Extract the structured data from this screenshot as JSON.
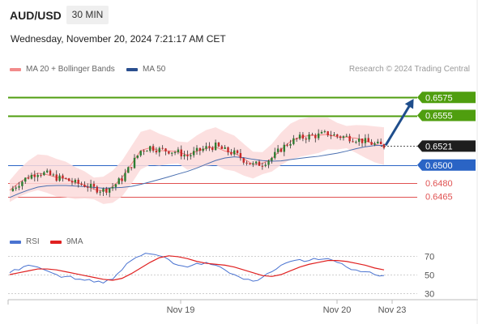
{
  "header": {
    "symbol": "AUD/USD",
    "timeframe": "30 MIN",
    "datetime": "Wednesday, November 20, 2024 7:21:17 AM CET"
  },
  "legend": {
    "bb_label": "MA 20 + Bollinger Bands",
    "ma50_label": "MA 50",
    "credit": "Research © 2024 Trading Central",
    "rsi_label": "RSI",
    "rsi_ma_label": "9MA"
  },
  "colors": {
    "green": "#4f9e0f",
    "blue": "#2a64c5",
    "red": "#e05252",
    "navy": "#1f4e8c",
    "candle_up": "#2e7d32",
    "candle_down": "#c62828",
    "band_fill": "#fbdada",
    "ma20": "#f08080",
    "ma50": "#4a6fb0",
    "rsi": "#4a73d1",
    "rsi_ma": "#e02020"
  },
  "chart_data": {
    "type": "candlestick",
    "price_ylim": [
      0.6445,
      0.6595
    ],
    "x_ticks": [
      "Nov 19",
      "Nov 20",
      "Nov 23"
    ],
    "current_price": "0.6521",
    "levels": [
      {
        "value": 0.6575,
        "label": "0.6575",
        "color": "#4f9e0f",
        "style": "target"
      },
      {
        "value": 0.6555,
        "label": "0.6555",
        "color": "#4f9e0f",
        "style": "target"
      },
      {
        "value": 0.65,
        "label": "0.6500",
        "color": "#2a64c5",
        "style": "pivot"
      },
      {
        "value": 0.648,
        "label": "0.6480",
        "color": "#e05252",
        "style": "support"
      },
      {
        "value": 0.6465,
        "label": "0.6465",
        "color": "#e05252",
        "style": "support"
      }
    ],
    "close_path": [
      0.6471,
      0.648,
      0.6487,
      0.6492,
      0.649,
      0.6486,
      0.6484,
      0.648,
      0.6478,
      0.6474,
      0.6472,
      0.6476,
      0.6485,
      0.65,
      0.6516,
      0.652,
      0.6517,
      0.6516,
      0.6514,
      0.651,
      0.6515,
      0.6519,
      0.6521,
      0.6516,
      0.6513,
      0.6506,
      0.65,
      0.6502,
      0.6508,
      0.6518,
      0.6526,
      0.653,
      0.6532,
      0.6533,
      0.6535,
      0.6532,
      0.6531,
      0.6529,
      0.6526,
      0.6523,
      0.6521
    ],
    "rsi": {
      "ticks": [
        70,
        50,
        30
      ],
      "ylim": [
        25,
        75
      ],
      "values": [
        52,
        55,
        60,
        58,
        54,
        50,
        48,
        45,
        44,
        42,
        41,
        45,
        55,
        65,
        70,
        72,
        70,
        66,
        60,
        58,
        62,
        63,
        60,
        55,
        50,
        45,
        43,
        47,
        53,
        60,
        64,
        66,
        65,
        66,
        67,
        63,
        58,
        55,
        53,
        50,
        49
      ],
      "ma9": [
        50,
        52,
        54,
        56,
        56,
        55,
        53,
        51,
        49,
        47,
        45,
        44,
        46,
        51,
        57,
        63,
        68,
        70,
        69,
        67,
        64,
        62,
        61,
        60,
        58,
        55,
        52,
        49,
        48,
        50,
        54,
        58,
        61,
        63,
        65,
        65,
        64,
        62,
        60,
        57,
        55
      ]
    }
  }
}
